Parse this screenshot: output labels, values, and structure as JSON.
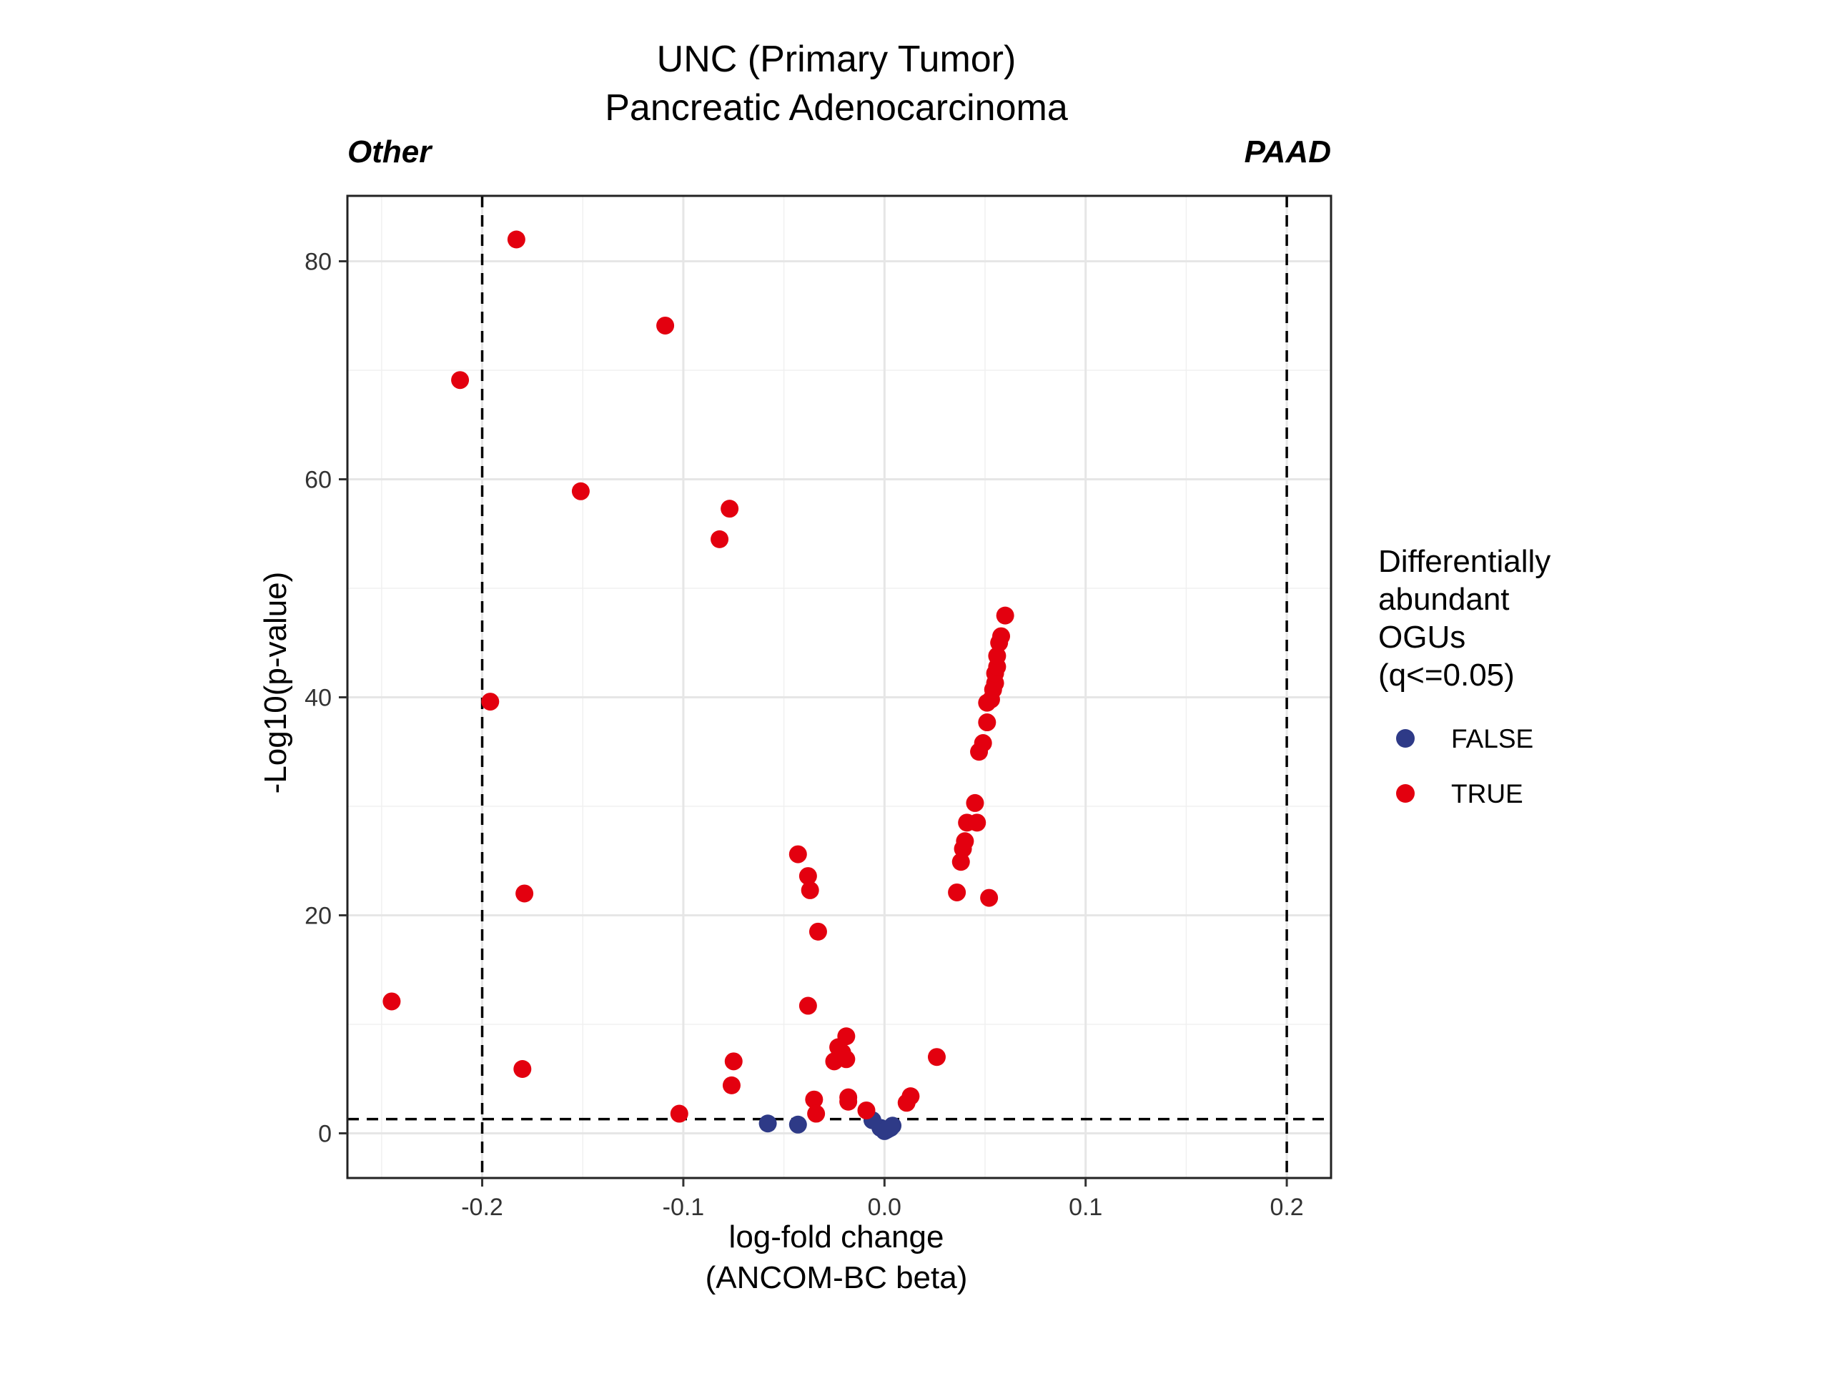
{
  "chart_data": {
    "type": "scatter",
    "title": [
      "UNC (Primary Tumor)",
      "Pancreatic Adenocarcinoma"
    ],
    "left_label": "Other",
    "right_label": "PAAD",
    "xlabel": [
      "log-fold change",
      "(ANCOM-BC beta)"
    ],
    "ylabel": "-Log10(p-value)",
    "xlim": [
      -0.267,
      0.222
    ],
    "ylim": [
      -4.1,
      86
    ],
    "x_ticks": [
      -0.2,
      -0.1,
      0.0,
      0.1,
      0.2
    ],
    "x_tick_labels": [
      "-0.2",
      "-0.1",
      "0.0",
      "0.1",
      "0.2"
    ],
    "y_ticks": [
      0,
      20,
      40,
      60,
      80
    ],
    "y_tick_labels": [
      "0",
      "20",
      "40",
      "60",
      "80"
    ],
    "reference_lines": {
      "vertical": [
        -0.2,
        0.2
      ],
      "horizontal": [
        1.3
      ]
    },
    "grid": true,
    "legend": {
      "title": [
        "Differentially",
        "abundant",
        "OGUs",
        "(q<=0.05)"
      ],
      "placement": "right",
      "entries": [
        {
          "label": "FALSE",
          "color": "#2e3a87"
        },
        {
          "label": "TRUE",
          "color": "#e3000f"
        }
      ]
    },
    "series": [
      {
        "name": "FALSE",
        "color": "#2e3a87",
        "points": [
          [
            -0.058,
            0.9
          ],
          [
            -0.043,
            0.8
          ],
          [
            -0.006,
            1.2
          ],
          [
            -0.002,
            0.5
          ],
          [
            0.0,
            0.2
          ],
          [
            0.001,
            0.3
          ],
          [
            0.002,
            0.4
          ],
          [
            0.003,
            0.5
          ],
          [
            0.004,
            0.7
          ]
        ]
      },
      {
        "name": "TRUE",
        "color": "#e3000f",
        "points": [
          [
            -0.183,
            82.0
          ],
          [
            -0.109,
            74.1
          ],
          [
            -0.211,
            69.1
          ],
          [
            -0.151,
            58.9
          ],
          [
            -0.077,
            57.3
          ],
          [
            -0.082,
            54.5
          ],
          [
            -0.196,
            39.6
          ],
          [
            -0.179,
            22.0
          ],
          [
            -0.245,
            12.1
          ],
          [
            -0.18,
            5.9
          ],
          [
            -0.102,
            1.8
          ],
          [
            -0.075,
            6.6
          ],
          [
            -0.076,
            4.4
          ],
          [
            -0.043,
            25.6
          ],
          [
            -0.038,
            23.6
          ],
          [
            -0.037,
            22.3
          ],
          [
            -0.033,
            18.5
          ],
          [
            -0.038,
            11.7
          ],
          [
            -0.035,
            3.1
          ],
          [
            -0.034,
            1.8
          ],
          [
            -0.019,
            8.9
          ],
          [
            -0.023,
            7.9
          ],
          [
            -0.021,
            7.4
          ],
          [
            -0.025,
            6.6
          ],
          [
            -0.019,
            6.8
          ],
          [
            -0.018,
            3.3
          ],
          [
            -0.018,
            2.9
          ],
          [
            -0.009,
            2.1
          ],
          [
            0.011,
            2.8
          ],
          [
            0.013,
            3.4
          ],
          [
            0.026,
            7.0
          ],
          [
            0.036,
            22.1
          ],
          [
            0.052,
            21.6
          ],
          [
            0.038,
            24.9
          ],
          [
            0.039,
            26.1
          ],
          [
            0.04,
            26.8
          ],
          [
            0.041,
            28.5
          ],
          [
            0.046,
            28.5
          ],
          [
            0.045,
            30.3
          ],
          [
            0.047,
            35.0
          ],
          [
            0.049,
            35.8
          ],
          [
            0.051,
            37.7
          ],
          [
            0.051,
            39.5
          ],
          [
            0.053,
            39.8
          ],
          [
            0.054,
            40.7
          ],
          [
            0.055,
            41.3
          ],
          [
            0.055,
            42.2
          ],
          [
            0.056,
            42.8
          ],
          [
            0.056,
            43.8
          ],
          [
            0.057,
            45.0
          ],
          [
            0.058,
            45.6
          ],
          [
            0.06,
            47.5
          ]
        ]
      }
    ]
  }
}
